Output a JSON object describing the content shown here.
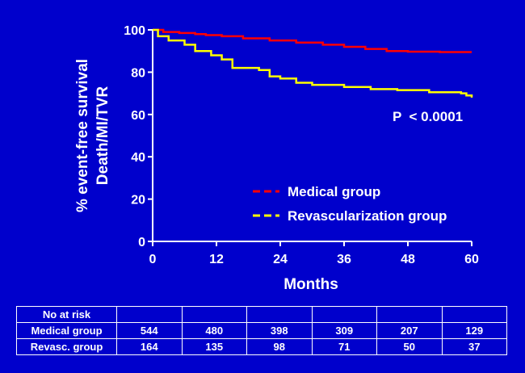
{
  "chart_data": {
    "type": "line",
    "title": "",
    "xlabel": "Months",
    "ylabel_lines": [
      "% event-free survival",
      "Death/MI/TVR"
    ],
    "xlim": [
      0,
      60
    ],
    "ylim": [
      0,
      100
    ],
    "xticks": [
      0,
      12,
      24,
      36,
      48,
      60
    ],
    "yticks": [
      0,
      20,
      40,
      60,
      80,
      100
    ],
    "grid": false,
    "legend_placement": "lower-right",
    "annotation": "P  < 0.0001",
    "series": [
      {
        "name": "Medical group",
        "color": "#FF0000",
        "step": true,
        "points": [
          [
            0,
            100
          ],
          [
            2,
            99
          ],
          [
            5,
            98.5
          ],
          [
            8,
            98
          ],
          [
            10,
            97.5
          ],
          [
            13,
            97
          ],
          [
            17,
            96
          ],
          [
            22,
            95
          ],
          [
            27,
            94
          ],
          [
            32,
            93
          ],
          [
            36,
            92
          ],
          [
            40,
            91
          ],
          [
            44,
            90
          ],
          [
            48,
            89.7
          ],
          [
            54,
            89.5
          ],
          [
            60,
            89.5
          ]
        ]
      },
      {
        "name": "Revascularization group",
        "color": "#FFFF00",
        "step": true,
        "points": [
          [
            0,
            100
          ],
          [
            1,
            97
          ],
          [
            3,
            95
          ],
          [
            6,
            93
          ],
          [
            8,
            90
          ],
          [
            11,
            88
          ],
          [
            13,
            86
          ],
          [
            15,
            82
          ],
          [
            20,
            81
          ],
          [
            22,
            78
          ],
          [
            24,
            77
          ],
          [
            27,
            75
          ],
          [
            30,
            74
          ],
          [
            36,
            73
          ],
          [
            41,
            72
          ],
          [
            46,
            71.5
          ],
          [
            52,
            70.5
          ],
          [
            58,
            70
          ],
          [
            59,
            69
          ],
          [
            60,
            68
          ]
        ]
      }
    ]
  },
  "risk_table": {
    "header_label": "No at risk",
    "rows": [
      {
        "label": "Medical group",
        "values": [
          "544",
          "480",
          "398",
          "309",
          "207",
          "129"
        ]
      },
      {
        "label": "Revasc. group",
        "values": [
          "164",
          "135",
          "98",
          "71",
          "50",
          "37"
        ]
      }
    ]
  }
}
